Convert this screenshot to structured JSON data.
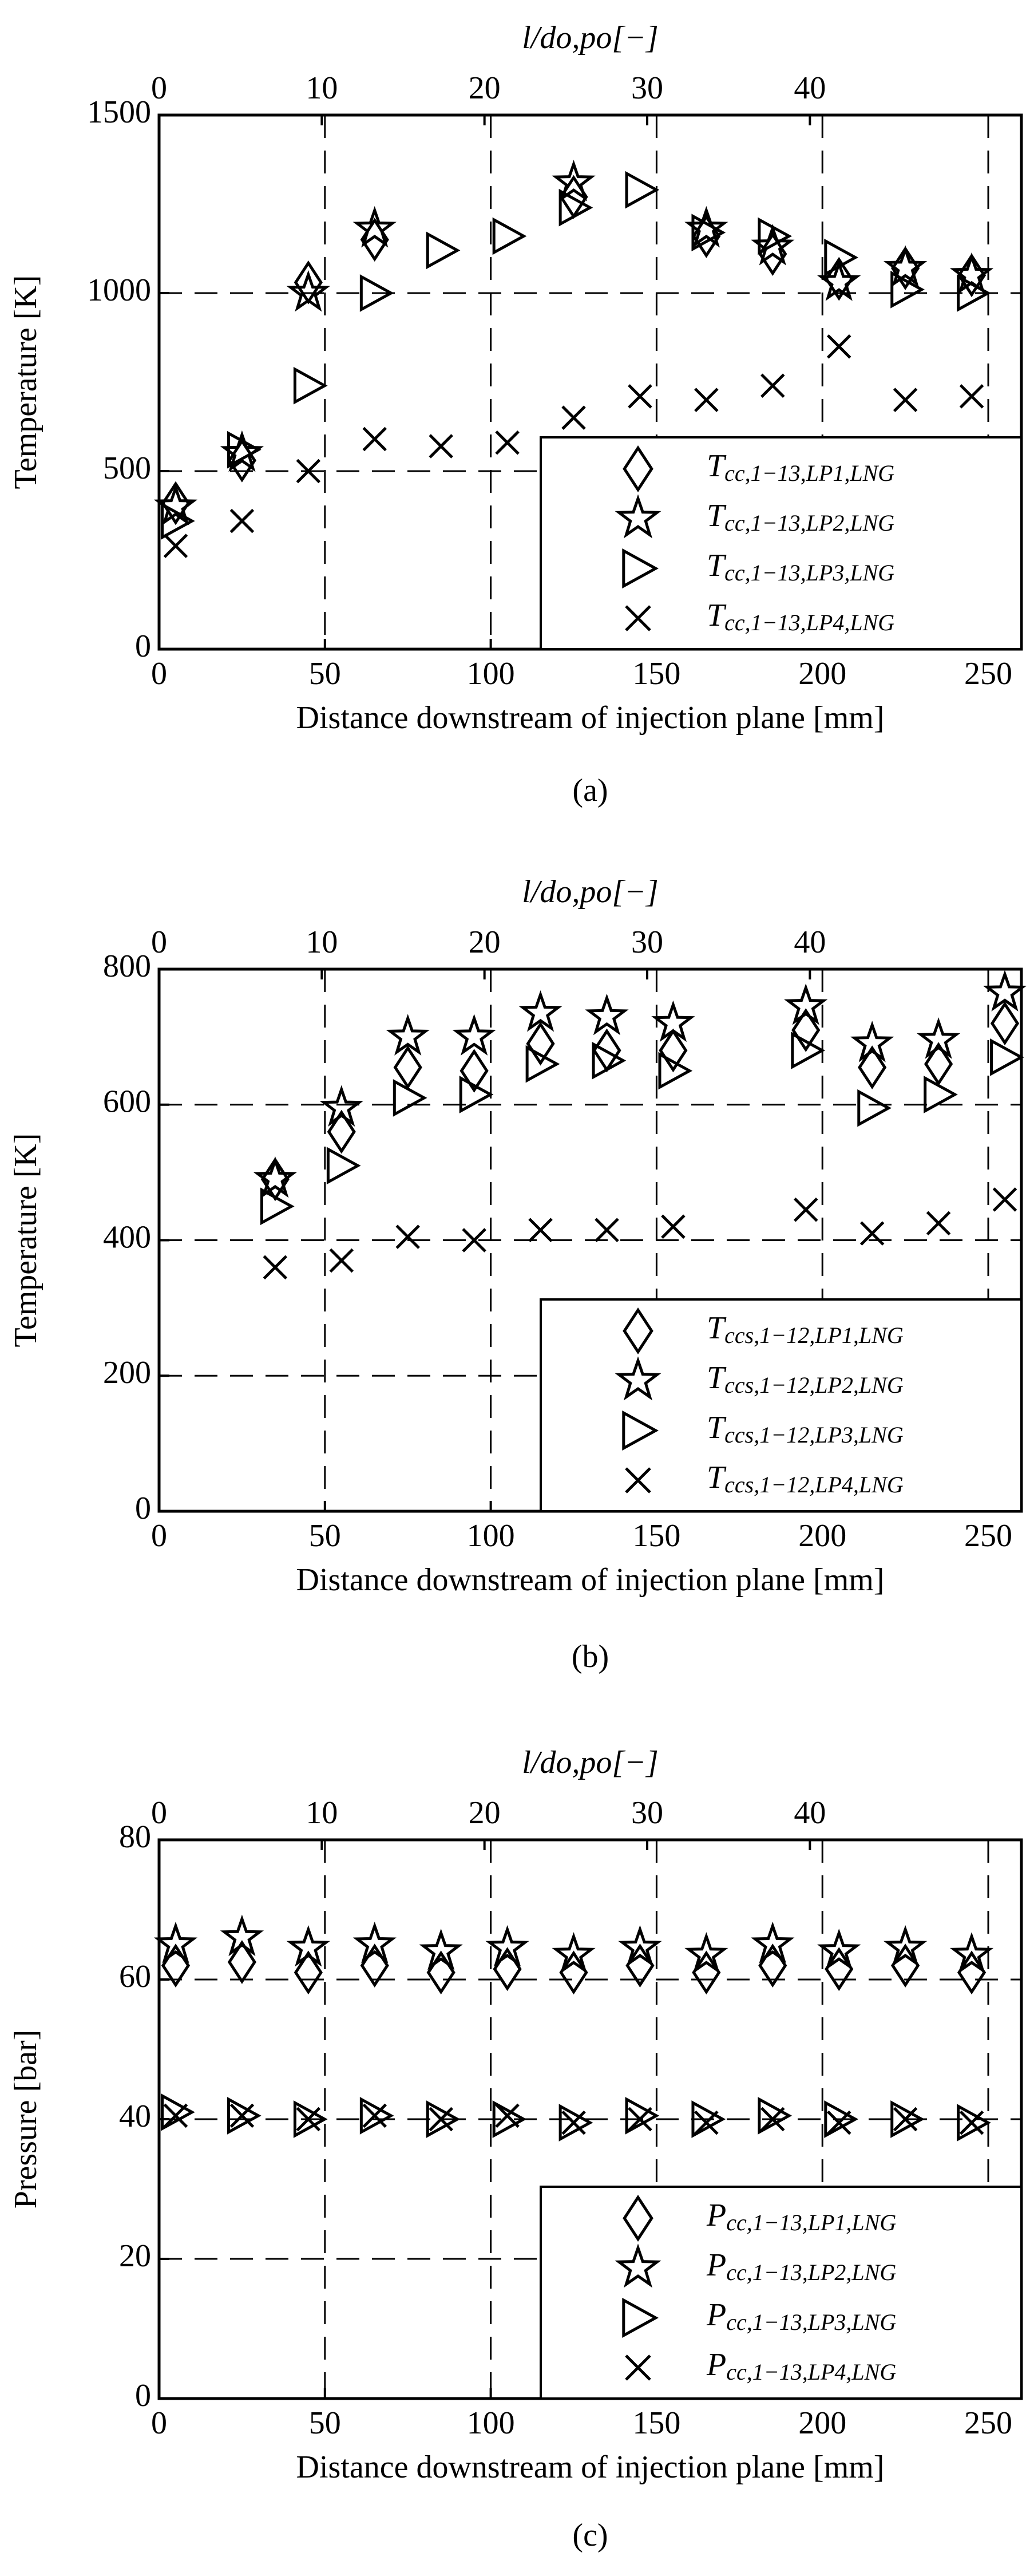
{
  "chart_data": [
    {
      "type": "scatter",
      "caption": "(a)",
      "xlabel": "Distance downstream of injection plane [mm]",
      "ylabel": "Temperature [K]",
      "x2label": "l/do,po[−]",
      "xlim": [
        0,
        260
      ],
      "xticks": [
        0,
        50,
        100,
        150,
        200,
        250
      ],
      "ylim": [
        0,
        1500
      ],
      "yticks": [
        0,
        500,
        1000,
        1500
      ],
      "x2lim": [
        0,
        53
      ],
      "x2ticks": [
        0,
        10,
        20,
        30,
        40
      ],
      "grid": "dashed",
      "legend": "lower right",
      "series": [
        {
          "name": "Tcc,1−13,LP1,LNG",
          "marker": "diamond",
          "color": "#000000",
          "x": [
            5,
            25,
            45,
            65,
            125,
            165,
            185,
            205,
            225,
            245
          ],
          "values": [
            410,
            530,
            1030,
            1150,
            1270,
            1160,
            1110,
            1040,
            1070,
            1050
          ]
        },
        {
          "name": "Tcc,1−13,LP2,LNG",
          "marker": "star",
          "color": "#000000",
          "x": [
            5,
            25,
            45,
            65,
            125,
            165,
            185,
            205,
            225,
            245
          ],
          "values": [
            400,
            550,
            1000,
            1180,
            1310,
            1180,
            1130,
            1030,
            1070,
            1050
          ]
        },
        {
          "name": "Tcc,1−13,LP3,LNG",
          "marker": "triangle",
          "color": "#000000",
          "x": [
            5,
            25,
            45,
            65,
            85,
            105,
            125,
            145,
            165,
            185,
            205,
            225,
            245
          ],
          "values": [
            360,
            560,
            740,
            1000,
            1120,
            1160,
            1240,
            1290,
            1170,
            1160,
            1100,
            1010,
            1000
          ]
        },
        {
          "name": "Tcc,1−13,LP4,LNG",
          "marker": "x",
          "color": "#000000",
          "x": [
            5,
            25,
            45,
            65,
            85,
            105,
            125,
            145,
            165,
            185,
            205,
            225,
            245
          ],
          "values": [
            290,
            360,
            500,
            590,
            570,
            580,
            650,
            710,
            700,
            740,
            850,
            700,
            710
          ]
        }
      ]
    },
    {
      "type": "scatter",
      "caption": "(b)",
      "xlabel": "Distance downstream of injection plane [mm]",
      "ylabel": "Temperature [K]",
      "x2label": "l/do,po[−]",
      "xlim": [
        0,
        260
      ],
      "xticks": [
        0,
        50,
        100,
        150,
        200,
        250
      ],
      "ylim": [
        0,
        800
      ],
      "yticks": [
        0,
        200,
        400,
        600,
        800
      ],
      "x2lim": [
        0,
        53
      ],
      "x2ticks": [
        0,
        10,
        20,
        30,
        40
      ],
      "grid": "dashed",
      "legend": "lower right",
      "series": [
        {
          "name": "Tccs,1−12,LP1,LNG",
          "marker": "diamond",
          "color": "#000000",
          "x": [
            35,
            55,
            75,
            95,
            115,
            135,
            155,
            195,
            215,
            235,
            255
          ],
          "values": [
            490,
            560,
            655,
            650,
            690,
            680,
            680,
            710,
            655,
            660,
            720
          ]
        },
        {
          "name": "Tccs,1−12,LP2,LNG",
          "marker": "star",
          "color": "#000000",
          "x": [
            35,
            55,
            75,
            95,
            115,
            135,
            155,
            195,
            215,
            235,
            255
          ],
          "values": [
            490,
            595,
            700,
            700,
            735,
            730,
            720,
            745,
            690,
            695,
            765
          ]
        },
        {
          "name": "Tccs,1−12,LP3,LNG",
          "marker": "triangle",
          "color": "#000000",
          "x": [
            35,
            55,
            75,
            95,
            115,
            135,
            155,
            195,
            215,
            235,
            255
          ],
          "values": [
            450,
            510,
            610,
            615,
            660,
            665,
            650,
            680,
            595,
            615,
            670
          ]
        },
        {
          "name": "Tccs,1−12,LP4,LNG",
          "marker": "x",
          "color": "#000000",
          "x": [
            35,
            55,
            75,
            95,
            115,
            135,
            155,
            195,
            215,
            235,
            255
          ],
          "values": [
            360,
            370,
            405,
            400,
            415,
            415,
            420,
            445,
            410,
            425,
            460
          ]
        }
      ]
    },
    {
      "type": "scatter",
      "caption": "(c)",
      "xlabel": "Distance downstream of injection plane [mm]",
      "ylabel": "Pressure [bar]",
      "x2label": "l/do,po[−]",
      "xlim": [
        0,
        260
      ],
      "xticks": [
        0,
        50,
        100,
        150,
        200,
        250
      ],
      "ylim": [
        0,
        80
      ],
      "yticks": [
        0,
        20,
        40,
        60,
        80
      ],
      "x2lim": [
        0,
        53
      ],
      "x2ticks": [
        0,
        10,
        20,
        30,
        40
      ],
      "grid": "dashed",
      "legend": "lower right",
      "series": [
        {
          "name": "Pcc,1−13,LP1,LNG",
          "marker": "diamond",
          "color": "#000000",
          "x": [
            5,
            25,
            45,
            65,
            85,
            105,
            125,
            145,
            165,
            185,
            205,
            225,
            245
          ],
          "values": [
            62,
            62.5,
            61,
            62,
            61,
            61.5,
            61,
            62,
            61,
            62,
            61.5,
            62,
            61
          ]
        },
        {
          "name": "Pcc,1−13,LP2,LNG",
          "marker": "star",
          "color": "#000000",
          "x": [
            5,
            25,
            45,
            65,
            85,
            105,
            125,
            145,
            165,
            185,
            205,
            225,
            245
          ],
          "values": [
            65,
            66,
            64.5,
            65,
            64,
            64.5,
            63.5,
            64.5,
            63.5,
            65,
            64,
            64.5,
            63.5
          ]
        },
        {
          "name": "Pcc,1−13,LP3,LNG",
          "marker": "triangle",
          "color": "#000000",
          "x": [
            5,
            25,
            45,
            65,
            85,
            105,
            125,
            145,
            165,
            185,
            205,
            225,
            245
          ],
          "values": [
            41,
            40.5,
            40,
            40.5,
            40,
            40,
            39.5,
            40.5,
            40,
            40.5,
            40,
            40,
            39.5
          ]
        },
        {
          "name": "Pcc,1−13,LP4,LNG",
          "marker": "x",
          "color": "#000000",
          "x": [
            5,
            25,
            45,
            65,
            85,
            105,
            125,
            145,
            165,
            185,
            205,
            225,
            245
          ],
          "values": [
            40.5,
            40.5,
            40,
            40.5,
            40,
            40.5,
            39.5,
            40,
            39.5,
            40,
            39.5,
            40,
            39.5
          ]
        }
      ]
    }
  ]
}
